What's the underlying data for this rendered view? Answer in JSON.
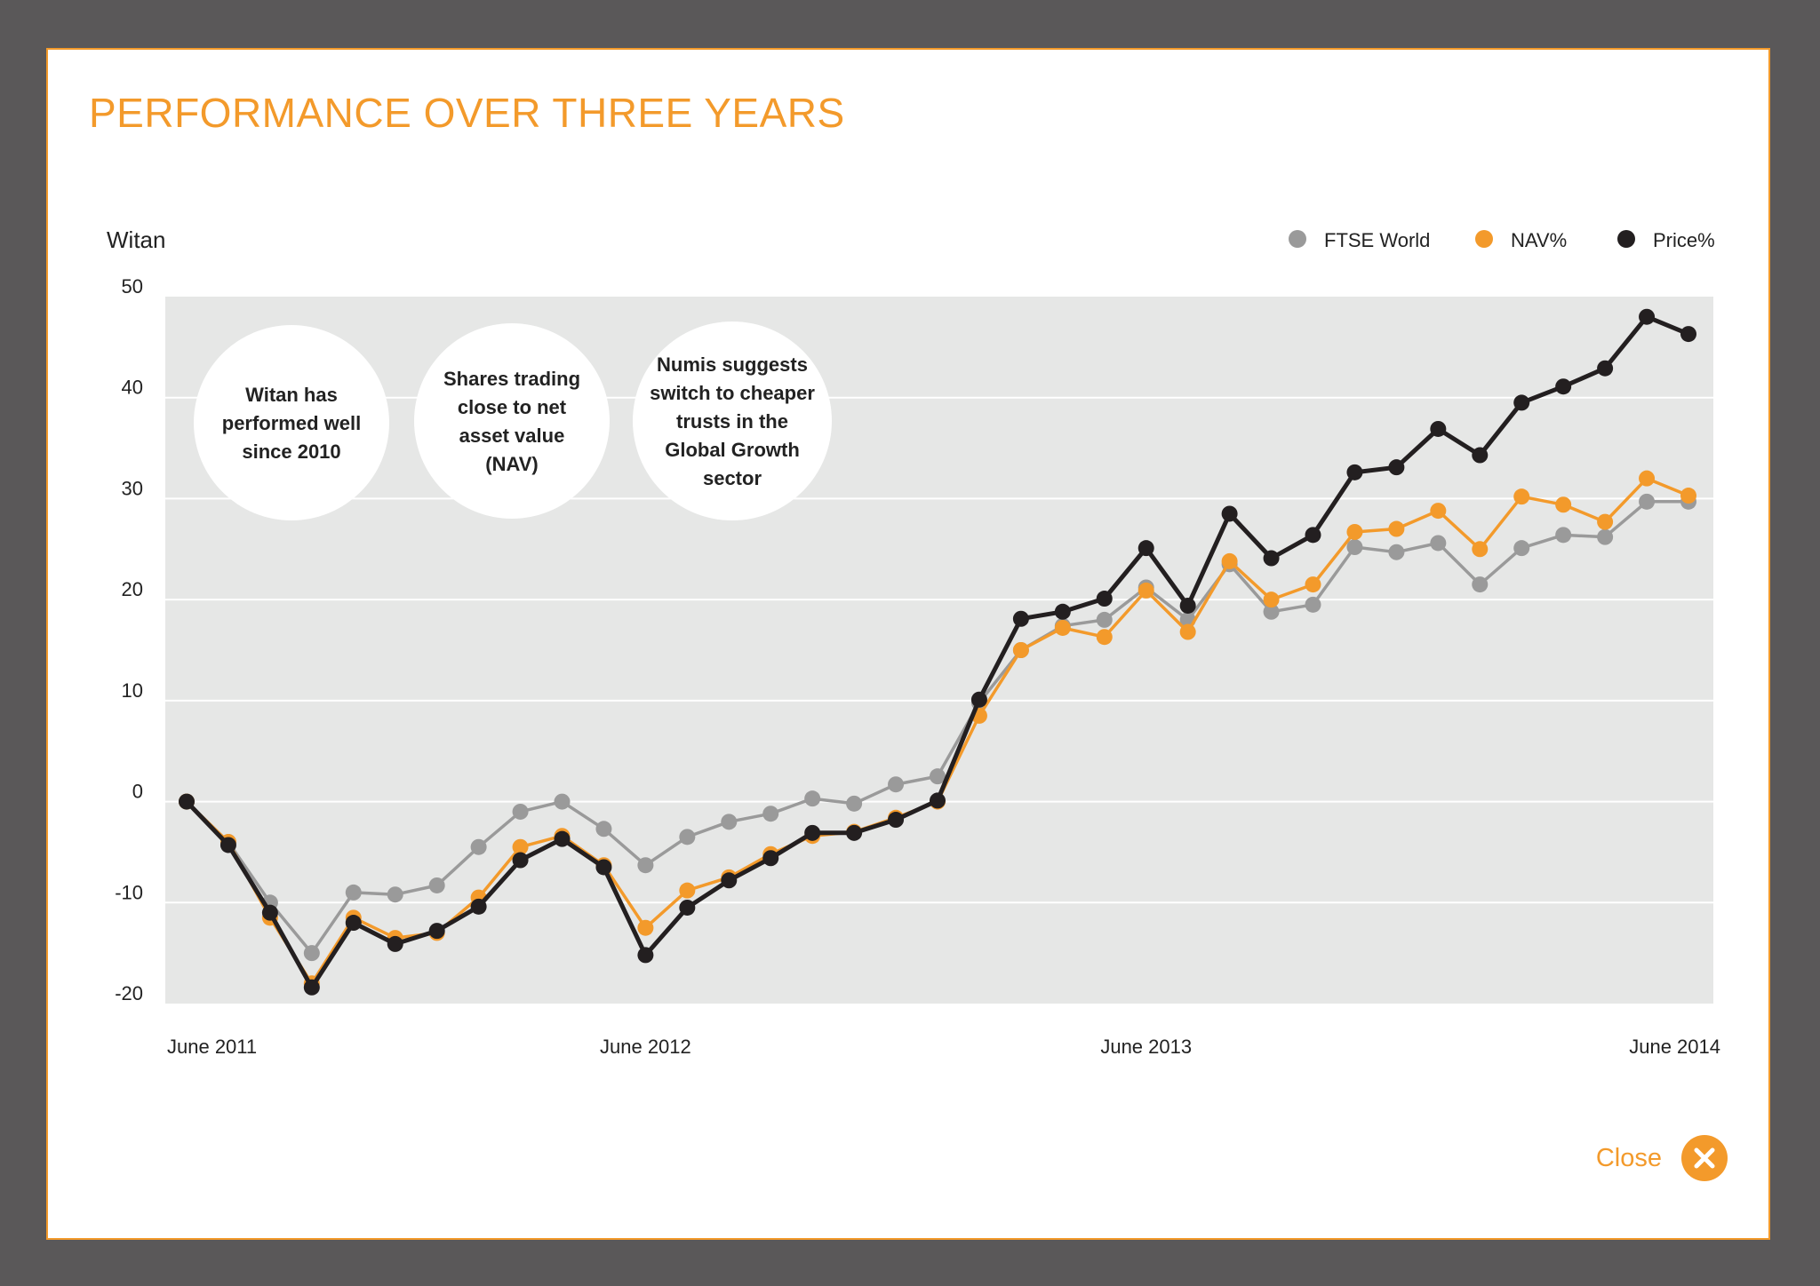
{
  "title": "PERFORMANCE OVER THREE YEARS",
  "close_label": "Close",
  "icons": {
    "close": "close-icon"
  },
  "colors": {
    "accent": "#f39a2b",
    "ftse": "#9a9a9a",
    "nav": "#f39a2b",
    "price": "#231f20",
    "plot_bg": "#e6e7e6"
  },
  "chart_data": {
    "type": "line",
    "subtitle": "Witan",
    "legend_position": "top-right",
    "grid": true,
    "ylim": [
      -20,
      50
    ],
    "yticks": [
      50,
      40,
      30,
      20,
      10,
      0,
      -10,
      -20
    ],
    "x_tick_labels": [
      {
        "label": "June 2011",
        "index": 0
      },
      {
        "label": "June 2012",
        "index": 11
      },
      {
        "label": "June 2013",
        "index": 23
      },
      {
        "label": "June 2014",
        "index": 36
      }
    ],
    "annotations": [
      "Witan has performed well since 2010",
      "Shares trading close to net asset value (NAV)",
      "Numis suggests switch to cheaper trusts in the Global Growth sector"
    ],
    "series": [
      {
        "name": "FTSE World",
        "values": [
          0,
          -4,
          -10,
          -15,
          -9,
          -9.2,
          -8.3,
          -4.5,
          -1,
          0,
          -2.7,
          -6.3,
          -3.5,
          -2,
          -1.2,
          0.3,
          -0.2,
          1.7,
          2.5,
          9.8,
          15,
          17.4,
          18,
          21.2,
          18,
          23.5,
          18.8,
          19.5,
          25.2,
          24.7,
          25.6,
          21.5,
          25.1,
          26.4,
          26.2,
          29.7,
          29.7
        ]
      },
      {
        "name": "NAV%",
        "values": [
          0,
          -4,
          -11.5,
          -18,
          -11.5,
          -13.5,
          -13,
          -9.5,
          -4.5,
          -3.4,
          -6.3,
          -12.5,
          -8.8,
          -7.5,
          -5.2,
          -3.4,
          -3,
          -1.6,
          0,
          8.5,
          15,
          17.2,
          16.3,
          20.9,
          16.8,
          23.8,
          20,
          21.5,
          26.7,
          27,
          28.8,
          25,
          30.2,
          29.4,
          27.7,
          32,
          30.3
        ]
      },
      {
        "name": "Price%",
        "values": [
          0,
          -4.3,
          -11,
          -18.4,
          -12,
          -14.1,
          -12.8,
          -10.4,
          -5.8,
          -3.7,
          -6.5,
          -15.2,
          -10.5,
          -7.8,
          -5.6,
          -3.1,
          -3.1,
          -1.8,
          0.1,
          10.1,
          18.1,
          18.8,
          20.1,
          25.1,
          19.4,
          28.5,
          24.1,
          26.4,
          32.6,
          33.1,
          36.9,
          34.3,
          39.5,
          41.1,
          42.9,
          48,
          46.3
        ]
      }
    ]
  }
}
